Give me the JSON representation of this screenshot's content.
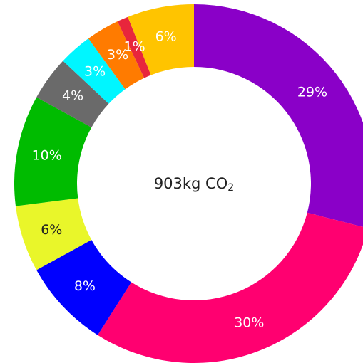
{
  "chart_data": {
    "type": "pie",
    "center_label": {
      "main": "903kg CO",
      "subscript": "2"
    },
    "slices": [
      {
        "label": "29%",
        "value": 29,
        "color": "#8a00c8"
      },
      {
        "label": "30%",
        "value": 30,
        "color": "#ff0070"
      },
      {
        "label": "8%",
        "value": 8,
        "color": "#0000ff"
      },
      {
        "label": "6%",
        "value": 6,
        "color": "#e9f62a"
      },
      {
        "label": "10%",
        "value": 10,
        "color": "#00bb00"
      },
      {
        "label": "4%",
        "value": 4,
        "color": "#6a6a6a"
      },
      {
        "label": "3%",
        "value": 3,
        "color": "#00f6ff"
      },
      {
        "label": "3%",
        "value": 3,
        "color": "#ff7b00"
      },
      {
        "label": "1%",
        "value": 1,
        "color": "#e8263c"
      },
      {
        "label": "6%",
        "value": 6,
        "color": "#ffc400"
      }
    ]
  }
}
